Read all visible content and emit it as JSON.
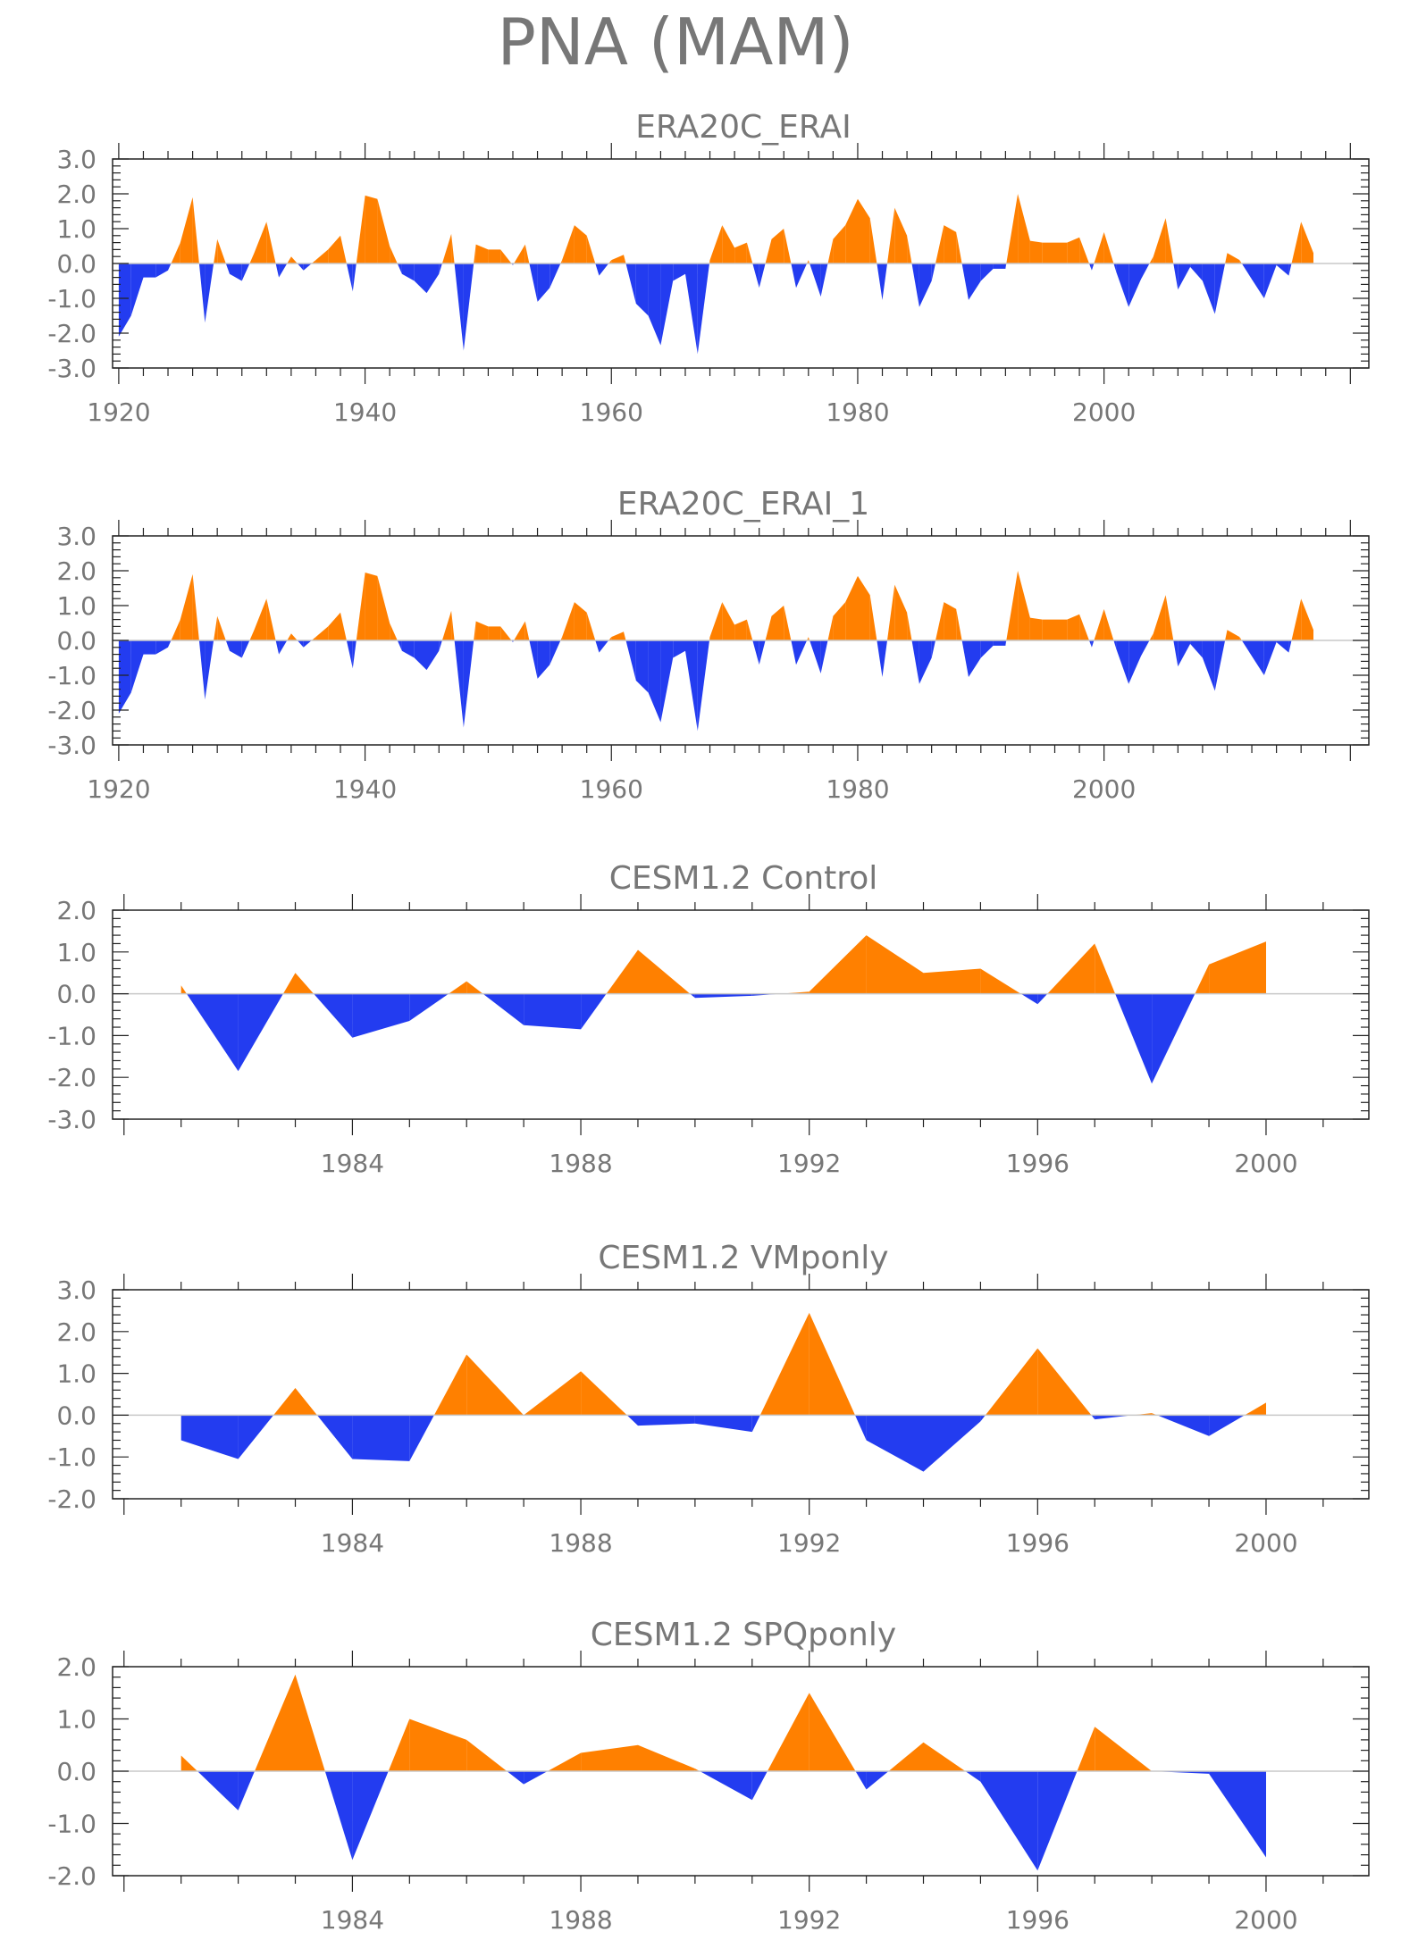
{
  "figure": {
    "title": "PNA (MAM)"
  },
  "colors": {
    "positive": "#ff8000",
    "negative": "#233cf0",
    "axis": "#222222",
    "text": "#777777",
    "zero": "#c8c8c8"
  },
  "chart_data": [
    {
      "type": "area",
      "title": "ERA20C_ERAI",
      "ylim": [
        -3,
        3
      ],
      "yticks": [
        -3,
        -2,
        -1,
        0,
        1,
        2,
        3
      ],
      "ytick_labels": [
        "-3.0",
        "-2.0",
        "-1.0",
        "0.0",
        "1.0",
        "2.0",
        "3.0"
      ],
      "xlim": [
        1919.5,
        2021.5
      ],
      "xticks": [
        1920,
        1940,
        1960,
        1980,
        2000
      ],
      "xtick_labels": [
        "1920",
        "1940",
        "1960",
        "1980",
        "2000"
      ],
      "x_start": 1920,
      "values": [
        -2.1,
        -1.5,
        -0.4,
        -0.4,
        -0.2,
        0.6,
        1.9,
        -1.7,
        0.7,
        -0.3,
        -0.5,
        0.3,
        1.2,
        -0.4,
        0.2,
        -0.2,
        0.1,
        0.4,
        0.8,
        -0.8,
        1.95,
        1.85,
        0.5,
        -0.3,
        -0.5,
        -0.85,
        -0.3,
        0.85,
        -2.5,
        0.55,
        0.4,
        0.4,
        -0.05,
        0.55,
        -1.1,
        -0.7,
        0.1,
        1.1,
        0.8,
        -0.35,
        0.1,
        0.25,
        -1.15,
        -1.5,
        -2.35,
        -0.5,
        -0.3,
        -2.6,
        0.1,
        1.1,
        0.45,
        0.6,
        -0.7,
        0.7,
        1.0,
        -0.7,
        0.1,
        -0.95,
        0.7,
        1.1,
        1.85,
        1.3,
        -1.05,
        1.6,
        0.8,
        -1.25,
        -0.5,
        1.1,
        0.9,
        -1.05,
        -0.5,
        -0.15,
        -0.15,
        2.0,
        0.65,
        0.6,
        0.6,
        0.6,
        0.75,
        -0.2,
        0.9,
        -0.25,
        -1.25,
        -0.45,
        0.2,
        1.3,
        -0.75,
        -0.1,
        -0.5,
        -1.45,
        0.3,
        0.1,
        -0.45,
        -1.0,
        -0.05,
        -0.35,
        1.2,
        0.3
      ]
    },
    {
      "type": "area",
      "title": "ERA20C_ERAI_1",
      "ylim": [
        -3,
        3
      ],
      "yticks": [
        -3,
        -2,
        -1,
        0,
        1,
        2,
        3
      ],
      "ytick_labels": [
        "-3.0",
        "-2.0",
        "-1.0",
        "0.0",
        "1.0",
        "2.0",
        "3.0"
      ],
      "xlim": [
        1919.5,
        2021.5
      ],
      "xticks": [
        1920,
        1940,
        1960,
        1980,
        2000
      ],
      "xtick_labels": [
        "1920",
        "1940",
        "1960",
        "1980",
        "2000"
      ],
      "x_start": 1920,
      "values": [
        -2.1,
        -1.5,
        -0.4,
        -0.4,
        -0.2,
        0.6,
        1.9,
        -1.7,
        0.7,
        -0.3,
        -0.5,
        0.3,
        1.2,
        -0.4,
        0.2,
        -0.2,
        0.1,
        0.4,
        0.8,
        -0.8,
        1.95,
        1.85,
        0.5,
        -0.3,
        -0.5,
        -0.85,
        -0.3,
        0.85,
        -2.5,
        0.55,
        0.4,
        0.4,
        -0.05,
        0.55,
        -1.1,
        -0.7,
        0.1,
        1.1,
        0.8,
        -0.35,
        0.1,
        0.25,
        -1.15,
        -1.5,
        -2.35,
        -0.5,
        -0.3,
        -2.6,
        0.1,
        1.1,
        0.45,
        0.6,
        -0.7,
        0.7,
        1.0,
        -0.7,
        0.1,
        -0.95,
        0.7,
        1.1,
        1.85,
        1.3,
        -1.05,
        1.6,
        0.8,
        -1.25,
        -0.5,
        1.1,
        0.9,
        -1.05,
        -0.5,
        -0.15,
        -0.15,
        2.0,
        0.65,
        0.6,
        0.6,
        0.6,
        0.75,
        -0.2,
        0.9,
        -0.25,
        -1.25,
        -0.45,
        0.2,
        1.3,
        -0.75,
        -0.1,
        -0.5,
        -1.45,
        0.3,
        0.1,
        -0.45,
        -1.0,
        -0.05,
        -0.35,
        1.2,
        0.3
      ]
    },
    {
      "type": "area",
      "title": "CESM1.2 Control",
      "ylim": [
        -3,
        2
      ],
      "yticks": [
        -3,
        -2,
        -1,
        0,
        1,
        2
      ],
      "ytick_labels": [
        "-3.0",
        "-2.0",
        "-1.0",
        "0.0",
        "1.0",
        "2.0"
      ],
      "xlim": [
        1979.8,
        2001.8
      ],
      "xticks": [
        1984,
        1988,
        1992,
        1996,
        2000
      ],
      "xtick_labels": [
        "1984",
        "1988",
        "1992",
        "1996",
        "2000"
      ],
      "x_start": 1981,
      "values": [
        0.2,
        -1.85,
        0.5,
        -1.05,
        -0.65,
        0.3,
        -0.75,
        -0.85,
        1.05,
        -0.1,
        -0.05,
        0.05,
        1.4,
        0.5,
        0.6,
        -0.25,
        1.2,
        -2.15,
        0.7,
        1.25
      ]
    },
    {
      "type": "area",
      "title": "CESM1.2 VMponly",
      "ylim": [
        -2,
        3
      ],
      "yticks": [
        -2,
        -1,
        0,
        1,
        2,
        3
      ],
      "ytick_labels": [
        "-2.0",
        "-1.0",
        "0.0",
        "1.0",
        "2.0",
        "3.0"
      ],
      "xlim": [
        1979.8,
        2001.8
      ],
      "xticks": [
        1984,
        1988,
        1992,
        1996,
        2000
      ],
      "xtick_labels": [
        "1984",
        "1988",
        "1992",
        "1996",
        "2000"
      ],
      "x_start": 1981,
      "values": [
        -0.6,
        -1.05,
        0.65,
        -1.05,
        -1.1,
        1.45,
        0.0,
        1.05,
        -0.25,
        -0.2,
        -0.4,
        2.45,
        -0.6,
        -1.35,
        -0.15,
        1.6,
        -0.1,
        0.05,
        -0.5,
        0.3
      ]
    },
    {
      "type": "area",
      "title": "CESM1.2 SPQponly",
      "ylim": [
        -2,
        2
      ],
      "yticks": [
        -2,
        -1,
        0,
        1,
        2
      ],
      "ytick_labels": [
        "-2.0",
        "-1.0",
        "0.0",
        "1.0",
        "2.0"
      ],
      "xlim": [
        1979.8,
        2001.8
      ],
      "xticks": [
        1984,
        1988,
        1992,
        1996,
        2000
      ],
      "xtick_labels": [
        "1984",
        "1988",
        "1992",
        "1996",
        "2000"
      ],
      "x_start": 1981,
      "values": [
        0.3,
        -0.75,
        1.85,
        -1.7,
        1.0,
        0.6,
        -0.25,
        0.35,
        0.5,
        0.05,
        -0.55,
        1.5,
        -0.35,
        0.55,
        -0.2,
        -1.9,
        0.85,
        0.0,
        -0.05,
        -1.65
      ]
    }
  ]
}
